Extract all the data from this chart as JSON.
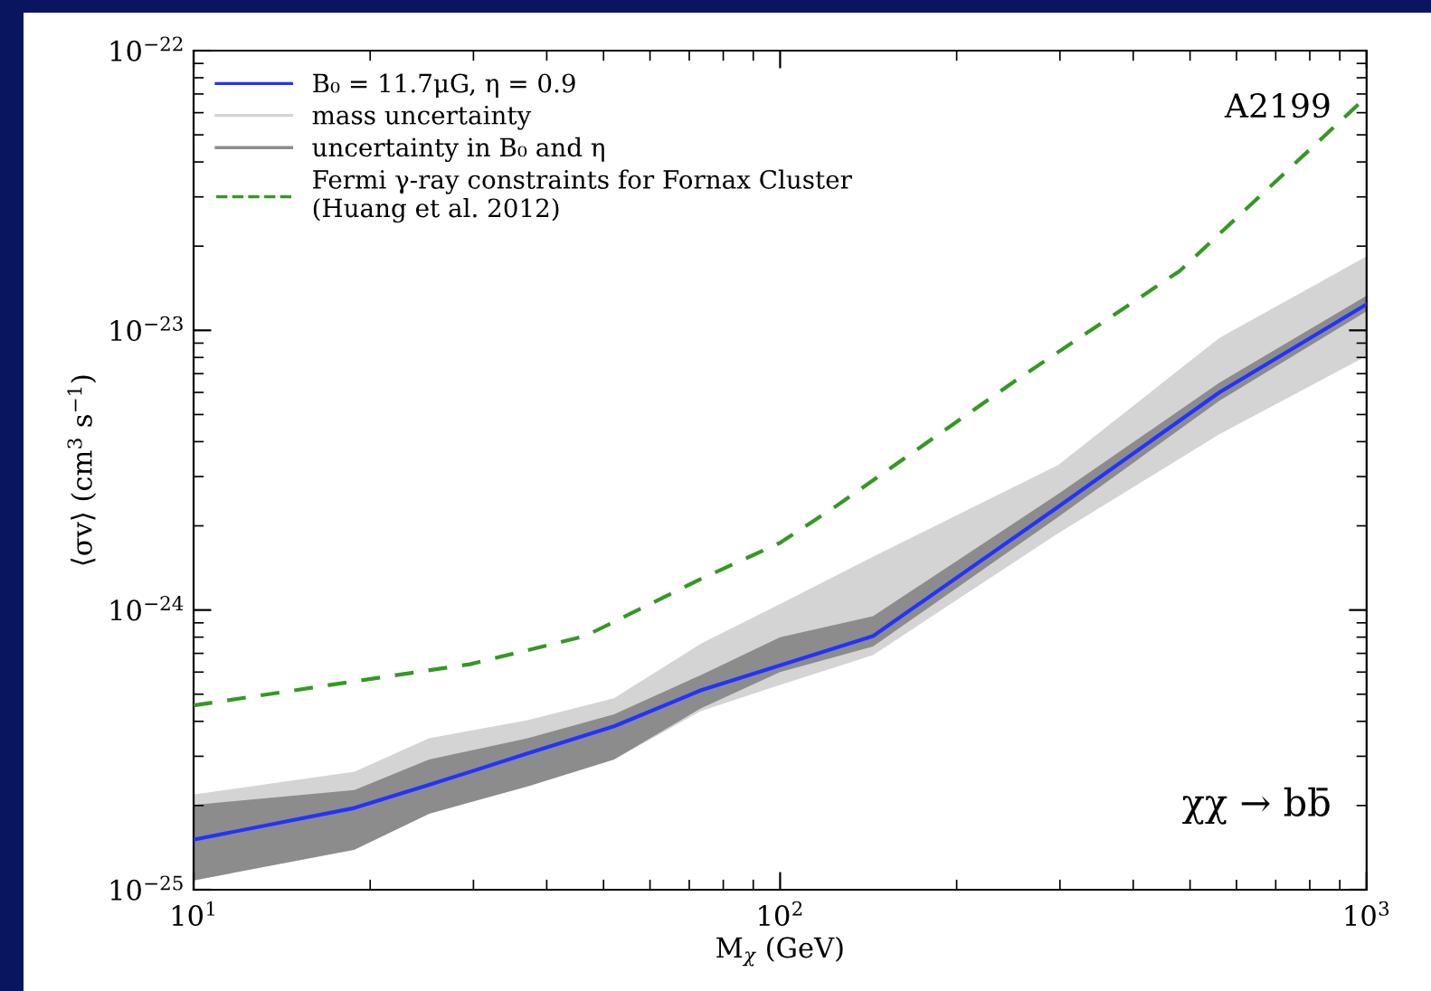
{
  "chart_data": {
    "type": "line",
    "xlabel": "M$_{χ}$ (GeV)",
    "ylabel": "⟨σv⟩ (cm$^{3}$ s$^{−1}$)",
    "log": "xy",
    "xlim": [
      10,
      1000
    ],
    "ylim": [
      1e-25,
      1e-22
    ],
    "xticks": [
      {
        "value": 10,
        "label": "10$^{1}$"
      },
      {
        "value": 100,
        "label": "10$^{2}$"
      },
      {
        "value": 1000,
        "label": "10$^{3}$"
      }
    ],
    "yticks": [
      {
        "value": 1e-25,
        "label": "10$^{−25}$"
      },
      {
        "value": 1e-24,
        "label": "10$^{−24}$"
      },
      {
        "value": 1e-23,
        "label": "10$^{−23}$"
      },
      {
        "value": 1e-22,
        "label": "10$^{−22}$"
      }
    ],
    "legend": "top left",
    "line_style": "solid",
    "series": [
      {
        "name": "B₀ = 11.7μG, η = 0.9",
        "color": "#2233ff",
        "x": [
          10,
          18.8,
          25.2,
          37.1,
          52.1,
          73.2,
          144,
          298,
          561,
          1000
        ],
        "values": [
          1.51e-25,
          1.96e-25,
          2.37e-25,
          3.07e-25,
          3.84e-25,
          5.16e-25,
          8.07e-25,
          2.34e-24,
          6e-24,
          1.24e-23
        ]
      },
      {
        "name": "mass uncertainty",
        "type": "area",
        "color": "#d4d4d4",
        "x": [
          10,
          18.8,
          25.2,
          37.1,
          52.1,
          73.2,
          100,
          144,
          298,
          561,
          1000
        ],
        "values": [
          null,
          null,
          null,
          null,
          null,
          null,
          null,
          null,
          null,
          null,
          null
        ],
        "lower": [
          1.08e-25,
          1.39e-25,
          1.87e-25,
          2.34e-25,
          2.92e-25,
          4.35e-25,
          5.4e-25,
          6.9e-25,
          1.88e-24,
          4.25e-24,
          8.1e-24
        ],
        "upper": [
          2.19e-25,
          2.64e-25,
          3.48e-25,
          4.04e-25,
          4.84e-25,
          7.57e-25,
          1.05e-24,
          1.55e-24,
          3.3e-24,
          9.4e-24,
          1.84e-23
        ]
      },
      {
        "name": "uncertainty in B₀ and η",
        "type": "area",
        "color": "#8c8c8c",
        "x": [
          10,
          18.8,
          25.2,
          37.1,
          52.1,
          73.2,
          100,
          144,
          298,
          561,
          1000
        ],
        "values": [
          null,
          null,
          null,
          null,
          null,
          null,
          null,
          null,
          null,
          null,
          null
        ],
        "lower": [
          1.08e-25,
          1.39e-25,
          1.87e-25,
          2.34e-25,
          2.92e-25,
          4.45e-25,
          6e-25,
          7.4e-25,
          2.15e-24,
          5.6e-24,
          1.17e-23
        ],
        "upper": [
          2.01e-25,
          2.27e-25,
          2.92e-25,
          3.48e-25,
          4.24e-25,
          5.85e-25,
          8e-25,
          9.5e-25,
          2.6e-24,
          6.5e-24,
          1.33e-23
        ]
      },
      {
        "name": "Fermi γ-ray constraints for Fornax Cluster\n(Huang et al. 2012)",
        "line_style": "dashed",
        "color": "#339922",
        "x": [
          10,
          18.8,
          29.6,
          46.5,
          73.2,
          100,
          124.5,
          253,
          480,
          1000
        ],
        "values": [
          4.56e-25,
          5.56e-25,
          6.4e-25,
          8.07e-25,
          1.29e-24,
          1.74e-24,
          2.35e-24,
          6.65e-24,
          1.63e-23,
          6.85e-23
        ]
      }
    ],
    "annotations": [
      "A2199",
      "χχ → bb̄"
    ]
  }
}
